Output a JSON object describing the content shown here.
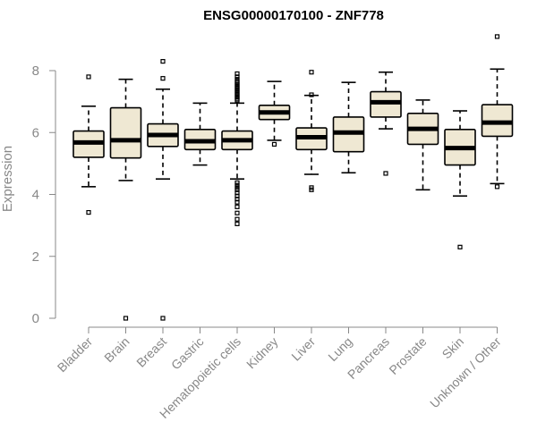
{
  "chart_data": {
    "type": "boxplot",
    "title": "ENSG00000170100 - ZNF778",
    "xlabel": "",
    "ylabel": "Expression",
    "ylim": [
      0,
      9.2
    ],
    "yticks": [
      0,
      2,
      4,
      6,
      8
    ],
    "box_color": "#efe8d3",
    "categories": [
      "Bladder",
      "Brain",
      "Breast",
      "Gastric",
      "Hematopoietic cells",
      "Kidney",
      "Liver",
      "Lung",
      "Pancreas",
      "Prostate",
      "Skin",
      "Unknown / Other"
    ],
    "series": [
      {
        "name": "Bladder",
        "whisker_low": 4.25,
        "q1": 5.2,
        "median": 5.68,
        "q3": 6.05,
        "whisker_high": 6.85,
        "outliers": [
          3.42,
          7.8
        ]
      },
      {
        "name": "Brain",
        "whisker_low": 4.45,
        "q1": 5.18,
        "median": 5.75,
        "q3": 6.8,
        "whisker_high": 7.72,
        "outliers": [
          0.0
        ]
      },
      {
        "name": "Breast",
        "whisker_low": 4.5,
        "q1": 5.55,
        "median": 5.92,
        "q3": 6.28,
        "whisker_high": 7.4,
        "outliers": [
          0.0,
          7.75,
          8.3
        ]
      },
      {
        "name": "Gastric",
        "whisker_low": 4.95,
        "q1": 5.45,
        "median": 5.72,
        "q3": 6.1,
        "whisker_high": 6.95,
        "outliers": []
      },
      {
        "name": "Hematopoietic cells",
        "whisker_low": 4.5,
        "q1": 5.45,
        "median": 5.75,
        "q3": 6.05,
        "whisker_high": 6.95,
        "outliers": [
          3.05,
          3.2,
          3.4,
          3.6,
          3.75,
          3.85,
          3.95,
          4.05,
          4.15,
          4.22,
          4.3,
          4.38,
          7.05,
          7.1,
          7.15,
          7.2,
          7.25,
          7.3,
          7.35,
          7.4,
          7.45,
          7.5,
          7.55,
          7.6,
          7.65,
          7.72,
          7.8,
          7.9
        ]
      },
      {
        "name": "Kidney",
        "whisker_low": 5.75,
        "q1": 6.42,
        "median": 6.65,
        "q3": 6.88,
        "whisker_high": 7.65,
        "outliers": [
          5.62
        ]
      },
      {
        "name": "Liver",
        "whisker_low": 4.65,
        "q1": 5.45,
        "median": 5.85,
        "q3": 6.15,
        "whisker_high": 7.2,
        "outliers": [
          4.15,
          4.22,
          7.22,
          7.95
        ]
      },
      {
        "name": "Lung",
        "whisker_low": 4.7,
        "q1": 5.38,
        "median": 6.0,
        "q3": 6.5,
        "whisker_high": 7.62,
        "outliers": []
      },
      {
        "name": "Pancreas",
        "whisker_low": 6.12,
        "q1": 6.5,
        "median": 6.98,
        "q3": 7.32,
        "whisker_high": 7.95,
        "outliers": [
          4.68
        ]
      },
      {
        "name": "Prostate",
        "whisker_low": 4.15,
        "q1": 5.62,
        "median": 6.12,
        "q3": 6.62,
        "whisker_high": 7.05,
        "outliers": []
      },
      {
        "name": "Skin",
        "whisker_low": 3.95,
        "q1": 4.95,
        "median": 5.5,
        "q3": 6.1,
        "whisker_high": 6.7,
        "outliers": [
          2.3
        ]
      },
      {
        "name": "Unknown / Other",
        "whisker_low": 4.35,
        "q1": 5.88,
        "median": 6.32,
        "q3": 6.9,
        "whisker_high": 8.05,
        "outliers": [
          4.25,
          9.1
        ]
      }
    ]
  }
}
